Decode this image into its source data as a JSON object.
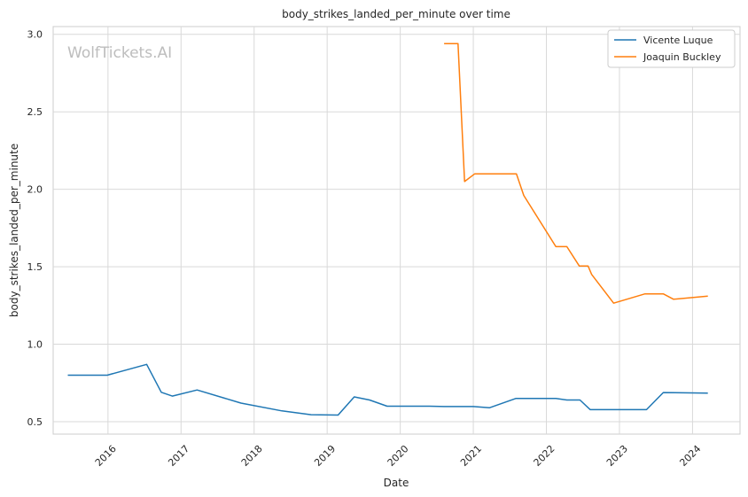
{
  "chart_data": {
    "type": "line",
    "title": "body_strikes_landed_per_minute over time",
    "xlabel": "Date",
    "ylabel": "body_strikes_landed_per_minute",
    "watermark": "WolfTickets.AI",
    "xlim": [
      2015.25,
      2024.65
    ],
    "ylim": [
      0.42,
      3.05
    ],
    "x_ticks": [
      2016,
      2017,
      2018,
      2019,
      2020,
      2021,
      2022,
      2023,
      2024
    ],
    "x_tick_labels": [
      "2016",
      "2017",
      "2018",
      "2019",
      "2020",
      "2021",
      "2022",
      "2023",
      "2024"
    ],
    "y_ticks": [
      0.5,
      1.0,
      1.5,
      2.0,
      2.5,
      3.0
    ],
    "y_tick_labels": [
      "0.5",
      "1.0",
      "1.5",
      "2.0",
      "2.5",
      "3.0"
    ],
    "grid": true,
    "legend_position": "top-right",
    "series": [
      {
        "name": "Vicente Luque",
        "color": "#1f77b4",
        "points": [
          [
            2015.45,
            0.8
          ],
          [
            2015.99,
            0.8
          ],
          [
            2016.53,
            0.87
          ],
          [
            2016.73,
            0.69
          ],
          [
            2016.88,
            0.665
          ],
          [
            2017.22,
            0.705
          ],
          [
            2017.82,
            0.62
          ],
          [
            2018.38,
            0.57
          ],
          [
            2018.78,
            0.545
          ],
          [
            2019.15,
            0.543
          ],
          [
            2019.37,
            0.66
          ],
          [
            2019.58,
            0.64
          ],
          [
            2019.82,
            0.6
          ],
          [
            2020.4,
            0.6
          ],
          [
            2020.6,
            0.598
          ],
          [
            2021.0,
            0.598
          ],
          [
            2021.22,
            0.59
          ],
          [
            2021.58,
            0.65
          ],
          [
            2022.13,
            0.65
          ],
          [
            2022.28,
            0.64
          ],
          [
            2022.46,
            0.64
          ],
          [
            2022.6,
            0.578
          ],
          [
            2023.37,
            0.578
          ],
          [
            2023.6,
            0.688
          ],
          [
            2024.21,
            0.685
          ]
        ]
      },
      {
        "name": "Joaquin Buckley",
        "color": "#ff7f0e",
        "points": [
          [
            2020.6,
            2.94
          ],
          [
            2020.79,
            2.94
          ],
          [
            2020.88,
            2.05
          ],
          [
            2021.02,
            2.1
          ],
          [
            2021.59,
            2.1
          ],
          [
            2021.69,
            1.96
          ],
          [
            2022.13,
            1.63
          ],
          [
            2022.28,
            1.63
          ],
          [
            2022.45,
            1.505
          ],
          [
            2022.57,
            1.505
          ],
          [
            2022.62,
            1.45
          ],
          [
            2022.92,
            1.265
          ],
          [
            2023.35,
            1.325
          ],
          [
            2023.6,
            1.325
          ],
          [
            2023.74,
            1.29
          ],
          [
            2024.21,
            1.31
          ]
        ]
      }
    ]
  }
}
